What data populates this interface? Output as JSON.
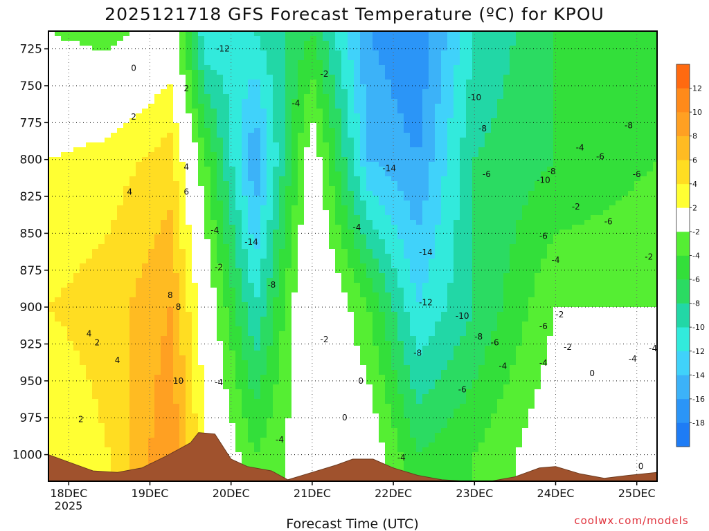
{
  "chart_data": {
    "type": "heatmap",
    "title": "2025121718 GFS Forecast Temperature (ºC) for KPOU",
    "xlabel": "Forecast Time (UTC)",
    "ylabel": "",
    "credit": "coolwx.com/models",
    "x_range_days": [
      17.75,
      25.25
    ],
    "y_range_hPa": [
      713,
      1018
    ],
    "y_ticks": [
      725,
      750,
      775,
      800,
      825,
      850,
      875,
      900,
      925,
      950,
      975,
      1000
    ],
    "y_tick_labels": [
      "725",
      "750",
      "775",
      "800",
      "825",
      "850",
      "875",
      "900",
      "925",
      "950",
      "975",
      "1000"
    ],
    "x_ticks": [
      18,
      19,
      20,
      21,
      22,
      23,
      24,
      25
    ],
    "x_tick_labels": [
      "18DEC",
      "19DEC",
      "20DEC",
      "21DEC",
      "22DEC",
      "23DEC",
      "24DEC",
      "25DEC"
    ],
    "x_year_label": "2025",
    "colorbar": {
      "levels": [
        -20,
        -18,
        -16,
        -14,
        -12,
        -10,
        -8,
        -6,
        -4,
        -2,
        2,
        4,
        6,
        8,
        10,
        12,
        14
      ],
      "tick_labels": [
        "-18",
        "-16",
        "-14",
        "-12",
        "-10",
        "-8",
        "-6",
        "-4",
        "-2",
        "2",
        "4",
        "6",
        "8",
        "10",
        "12"
      ],
      "colors": [
        "#1e7cf5",
        "#2b95f7",
        "#3cb2f8",
        "#40d2fa",
        "#32eadc",
        "#22d7a6",
        "#2bdb62",
        "#33df3a",
        "#55ee33",
        "#ffffff",
        "#ffff33",
        "#ffdd22",
        "#ffbb22",
        "#ffa022",
        "#ff8a1a",
        "#ff6a10"
      ]
    },
    "surface_pressure": {
      "days": [
        17.75,
        18.0,
        18.3,
        18.6,
        18.9,
        19.2,
        19.5,
        19.6,
        19.8,
        20.0,
        20.2,
        20.5,
        20.7,
        21.0,
        21.3,
        21.5,
        21.75,
        22.0,
        22.3,
        22.6,
        22.9,
        23.2,
        23.5,
        23.8,
        24.0,
        24.3,
        24.6,
        24.9,
        25.25
      ],
      "hPa": [
        1000,
        1005,
        1011,
        1012,
        1009,
        1001,
        992,
        985,
        986,
        1003,
        1008,
        1011,
        1017,
        1012,
        1007,
        1003,
        1003,
        1009,
        1014,
        1017,
        1018,
        1018,
        1015,
        1009,
        1008,
        1013,
        1016,
        1014,
        1012
      ]
    },
    "temperature_profiles": [
      {
        "day": 17.75,
        "hPa": [
          713,
          800,
          900,
          1000
        ],
        "tempC": [
          -2,
          2,
          4,
          2
        ]
      },
      {
        "day": 18.5,
        "hPa": [
          713,
          800,
          900,
          1000
        ],
        "tempC": [
          -3,
          3,
          5,
          4
        ]
      },
      {
        "day": 19.25,
        "hPa": [
          713,
          800,
          900,
          1000
        ],
        "tempC": [
          0,
          5,
          8,
          10
        ]
      },
      {
        "day": 19.7,
        "hPa": [
          713,
          800,
          900,
          1000
        ],
        "tempC": [
          -12,
          -4,
          0,
          2
        ]
      },
      {
        "day": 20.3,
        "hPa": [
          713,
          800,
          900,
          1000
        ],
        "tempC": [
          -10,
          -16,
          -10,
          -4
        ]
      },
      {
        "day": 21.0,
        "hPa": [
          713,
          800,
          900,
          1000
        ],
        "tempC": [
          -6,
          0,
          2,
          0
        ]
      },
      {
        "day": 21.7,
        "hPa": [
          713,
          800,
          900,
          1000
        ],
        "tempC": [
          -16,
          -14,
          -4,
          0
        ]
      },
      {
        "day": 22.3,
        "hPa": [
          713,
          800,
          900,
          1000
        ],
        "tempC": [
          -18,
          -16,
          -12,
          -6
        ]
      },
      {
        "day": 23.0,
        "hPa": [
          713,
          800,
          900,
          1000
        ],
        "tempC": [
          -10,
          -8,
          -8,
          -4
        ]
      },
      {
        "day": 24.0,
        "hPa": [
          713,
          800,
          900,
          1000
        ],
        "tempC": [
          -6,
          -6,
          -2,
          0
        ]
      },
      {
        "day": 25.25,
        "hPa": [
          713,
          800,
          900,
          1000
        ],
        "tempC": [
          -4,
          -4,
          -2,
          0
        ]
      }
    ],
    "contour_labels": [
      {
        "text": "0",
        "day": 18.8,
        "hPa": 738
      },
      {
        "text": "2",
        "day": 19.45,
        "hPa": 752
      },
      {
        "text": "2",
        "day": 18.8,
        "hPa": 771
      },
      {
        "text": "4",
        "day": 19.45,
        "hPa": 805
      },
      {
        "text": "4",
        "day": 18.75,
        "hPa": 822
      },
      {
        "text": "6",
        "day": 19.45,
        "hPa": 822
      },
      {
        "text": "8",
        "day": 19.25,
        "hPa": 892
      },
      {
        "text": "8",
        "day": 19.35,
        "hPa": 900
      },
      {
        "text": "10",
        "day": 19.35,
        "hPa": 950
      },
      {
        "text": "4",
        "day": 18.25,
        "hPa": 918
      },
      {
        "text": "2",
        "day": 18.35,
        "hPa": 924
      },
      {
        "text": "4",
        "day": 18.6,
        "hPa": 936
      },
      {
        "text": "2",
        "day": 18.15,
        "hPa": 976
      },
      {
        "text": "-12",
        "day": 19.9,
        "hPa": 725
      },
      {
        "text": "-4",
        "day": 19.8,
        "hPa": 848
      },
      {
        "text": "-2",
        "day": 19.85,
        "hPa": 873
      },
      {
        "text": "-4",
        "day": 19.85,
        "hPa": 951
      },
      {
        "text": "-14",
        "day": 20.25,
        "hPa": 856
      },
      {
        "text": "-8",
        "day": 20.5,
        "hPa": 885
      },
      {
        "text": "-4",
        "day": 20.6,
        "hPa": 990
      },
      {
        "text": "-4",
        "day": 20.8,
        "hPa": 762
      },
      {
        "text": "-2",
        "day": 21.15,
        "hPa": 742
      },
      {
        "text": "-2",
        "day": 21.15,
        "hPa": 922
      },
      {
        "text": "0",
        "day": 21.4,
        "hPa": 975
      },
      {
        "text": "0",
        "day": 21.6,
        "hPa": 950
      },
      {
        "text": "-4",
        "day": 21.55,
        "hPa": 846
      },
      {
        "text": "-14",
        "day": 21.95,
        "hPa": 806
      },
      {
        "text": "-14",
        "day": 22.4,
        "hPa": 863
      },
      {
        "text": "-12",
        "day": 22.4,
        "hPa": 897
      },
      {
        "text": "-8",
        "day": 22.3,
        "hPa": 931
      },
      {
        "text": "-4",
        "day": 22.1,
        "hPa": 1002
      },
      {
        "text": "-10",
        "day": 23.0,
        "hPa": 758
      },
      {
        "text": "-8",
        "day": 23.1,
        "hPa": 779
      },
      {
        "text": "-6",
        "day": 23.15,
        "hPa": 810
      },
      {
        "text": "-10",
        "day": 23.85,
        "hPa": 814
      },
      {
        "text": "-8",
        "day": 23.95,
        "hPa": 808
      },
      {
        "text": "-10",
        "day": 22.85,
        "hPa": 906
      },
      {
        "text": "-8",
        "day": 23.05,
        "hPa": 920
      },
      {
        "text": "-6",
        "day": 23.25,
        "hPa": 924
      },
      {
        "text": "-4",
        "day": 23.35,
        "hPa": 940
      },
      {
        "text": "-6",
        "day": 23.85,
        "hPa": 913
      },
      {
        "text": "-4",
        "day": 23.85,
        "hPa": 938
      },
      {
        "text": "-6",
        "day": 22.85,
        "hPa": 956
      },
      {
        "text": "-6",
        "day": 23.85,
        "hPa": 852
      },
      {
        "text": "-4",
        "day": 24.0,
        "hPa": 868
      },
      {
        "text": "-2",
        "day": 24.25,
        "hPa": 832
      },
      {
        "text": "-2",
        "day": 24.05,
        "hPa": 905
      },
      {
        "text": "-4",
        "day": 24.3,
        "hPa": 792
      },
      {
        "text": "-6",
        "day": 24.55,
        "hPa": 798
      },
      {
        "text": "-6",
        "day": 24.65,
        "hPa": 842
      },
      {
        "text": "-8",
        "day": 24.9,
        "hPa": 777
      },
      {
        "text": "-6",
        "day": 25.0,
        "hPa": 810
      },
      {
        "text": "-2",
        "day": 24.15,
        "hPa": 927
      },
      {
        "text": "0",
        "day": 24.45,
        "hPa": 945
      },
      {
        "text": "-2",
        "day": 25.15,
        "hPa": 866
      },
      {
        "text": "-4",
        "day": 24.95,
        "hPa": 935
      },
      {
        "text": "-4",
        "day": 25.2,
        "hPa": 928
      },
      {
        "text": "0",
        "day": 25.05,
        "hPa": 1008
      }
    ]
  }
}
